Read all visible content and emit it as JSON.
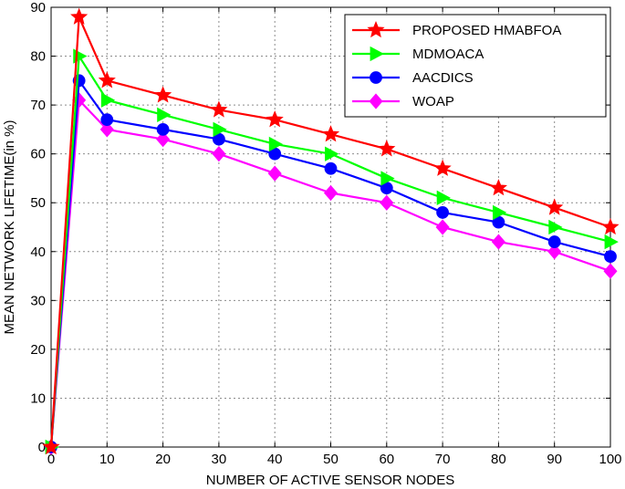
{
  "chart_data": {
    "type": "line",
    "title": "",
    "xlabel": "NUMBER OF ACTIVE SENSOR NODES",
    "ylabel": "MEAN NETWORK LIFETIME(in %)",
    "x": [
      0,
      5,
      10,
      20,
      30,
      40,
      50,
      60,
      70,
      80,
      90,
      100
    ],
    "xticks": [
      0,
      10,
      20,
      30,
      40,
      50,
      60,
      70,
      80,
      90,
      100
    ],
    "yticks": [
      0,
      10,
      20,
      30,
      40,
      50,
      60,
      70,
      80,
      90
    ],
    "xlim": [
      0,
      100
    ],
    "ylim": [
      0,
      90
    ],
    "grid": true,
    "legend_position": "top-right",
    "series": [
      {
        "name": "PROPOSED HMABFOA",
        "color": "#ff0000",
        "marker": "star",
        "values": [
          0,
          88,
          75,
          72,
          69,
          67,
          64,
          61,
          57,
          53,
          49,
          45
        ]
      },
      {
        "name": "MDMOACA",
        "color": "#00ff00",
        "marker": "triangle-right",
        "values": [
          0,
          80,
          71,
          68,
          65,
          62,
          60,
          55,
          51,
          48,
          45,
          42
        ]
      },
      {
        "name": "AACDICS",
        "color": "#0000ff",
        "marker": "circle",
        "values": [
          0,
          75,
          67,
          65,
          63,
          60,
          57,
          53,
          48,
          46,
          42,
          39
        ]
      },
      {
        "name": "WOAP",
        "color": "#ff00ff",
        "marker": "diamond",
        "values": [
          0,
          71,
          65,
          63,
          60,
          56,
          52,
          50,
          45,
          42,
          40,
          36
        ]
      }
    ]
  }
}
